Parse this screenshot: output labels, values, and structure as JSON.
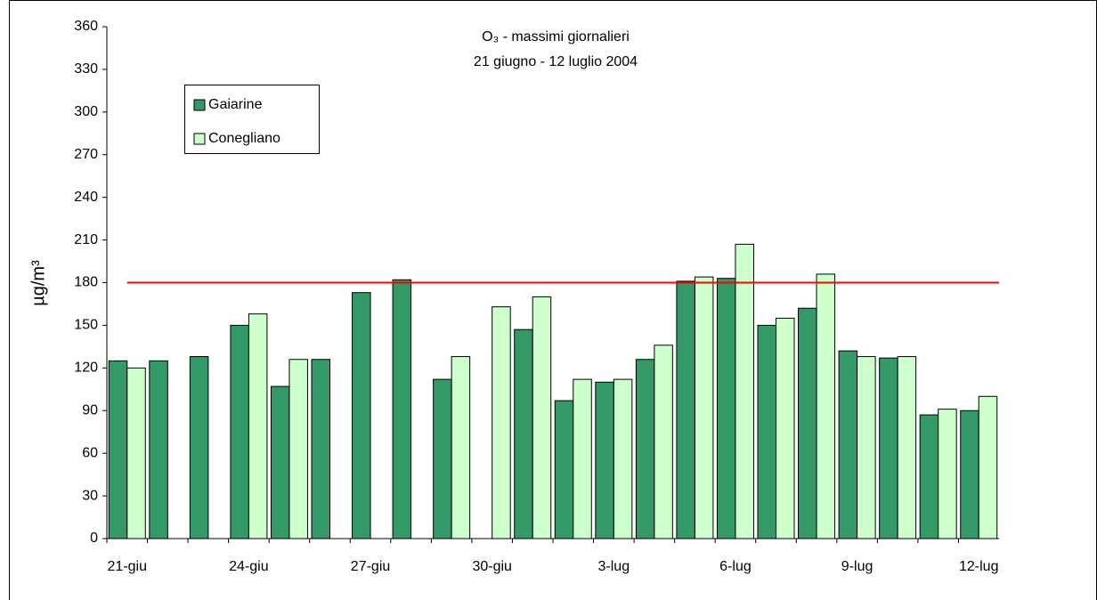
{
  "chart_data": {
    "type": "bar",
    "title": "O₃ - massimi giornalieri",
    "subtitle": "21 giugno - 12 luglio 2004",
    "y_label": "µg/m³",
    "categories": [
      "21-giu",
      null,
      null,
      "24-giu",
      null,
      null,
      "27-giu",
      null,
      null,
      "30-giu",
      null,
      null,
      "3-lug",
      null,
      null,
      "6-lug",
      null,
      null,
      "9-lug",
      null,
      null,
      "12-lug"
    ],
    "series": [
      {
        "name": "Gaiarine",
        "color": "#339966",
        "values": [
          125,
          125,
          128,
          150,
          107,
          126,
          173,
          182,
          112,
          null,
          147,
          97,
          110,
          126,
          181,
          183,
          150,
          162,
          132,
          127,
          87,
          90
        ]
      },
      {
        "name": "Conegliano",
        "color": "#ccffcc",
        "values": [
          120,
          null,
          null,
          158,
          126,
          null,
          null,
          null,
          128,
          163,
          170,
          112,
          112,
          136,
          184,
          207,
          155,
          186,
          128,
          128,
          91,
          100
        ]
      }
    ],
    "threshold": 180,
    "threshold_color": "#ff0000",
    "ylim": [
      0,
      360
    ],
    "yticks": [
      0,
      30,
      60,
      90,
      120,
      150,
      180,
      210,
      240,
      270,
      300,
      330,
      360
    ],
    "grid": false,
    "legend": "upper left"
  }
}
